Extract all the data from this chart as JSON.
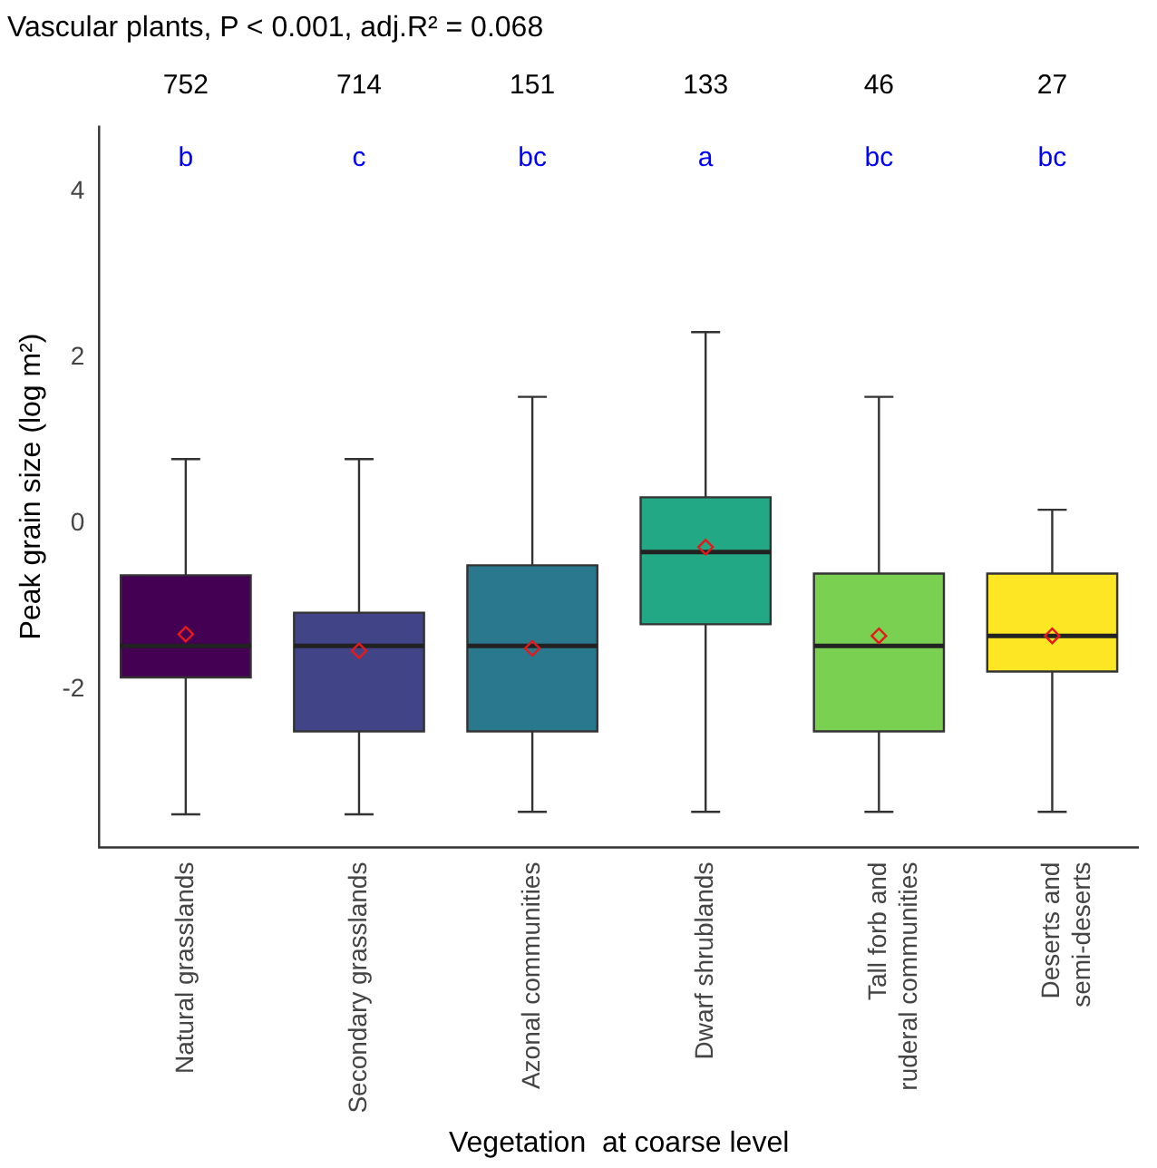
{
  "chart_data": {
    "type": "box",
    "title": "Vascular plants, P < 0.001, adj.R² = 0.068",
    "xlabel": "Vegetation  at coarse level",
    "ylabel": "Peak grain size (log m²)",
    "categories": [
      "Natural grasslands",
      "Secondary grasslands",
      "Azonal communities",
      "Dwarf shrublands",
      "Tall forb and\nruderal communities",
      "Deserts and\nsemi-deserts"
    ],
    "colors": [
      "#440154",
      "#414487",
      "#2a788e",
      "#22a884",
      "#7ad151",
      "#fde725"
    ],
    "boxes": [
      {
        "low": -3.5,
        "q1": -1.85,
        "median": -1.47,
        "q3": -0.62,
        "high": 0.78,
        "mean": -1.33
      },
      {
        "low": -3.5,
        "q1": -2.5,
        "median": -1.47,
        "q3": -1.07,
        "high": 0.78,
        "mean": -1.53
      },
      {
        "low": -3.47,
        "q1": -2.5,
        "median": -1.47,
        "q3": -0.5,
        "high": 1.53,
        "mean": -1.5
      },
      {
        "low": -3.47,
        "q1": -1.21,
        "median": -0.34,
        "q3": 0.32,
        "high": 2.31,
        "mean": -0.28
      },
      {
        "low": -3.47,
        "q1": -2.5,
        "median": -1.47,
        "q3": -0.6,
        "high": 1.53,
        "mean": -1.35
      },
      {
        "low": -3.47,
        "q1": -1.78,
        "median": -1.35,
        "q3": -0.6,
        "high": 0.17,
        "mean": -1.35
      }
    ],
    "ylim": [
      -3.9,
      4.8
    ],
    "yticks": [
      -2,
      0,
      2,
      4
    ],
    "grid": false,
    "legend": false,
    "annotations": [
      "752",
      "714",
      "151",
      "133",
      "46",
      "27",
      "b",
      "c",
      "bc",
      "a",
      "bc",
      "bc"
    ]
  }
}
